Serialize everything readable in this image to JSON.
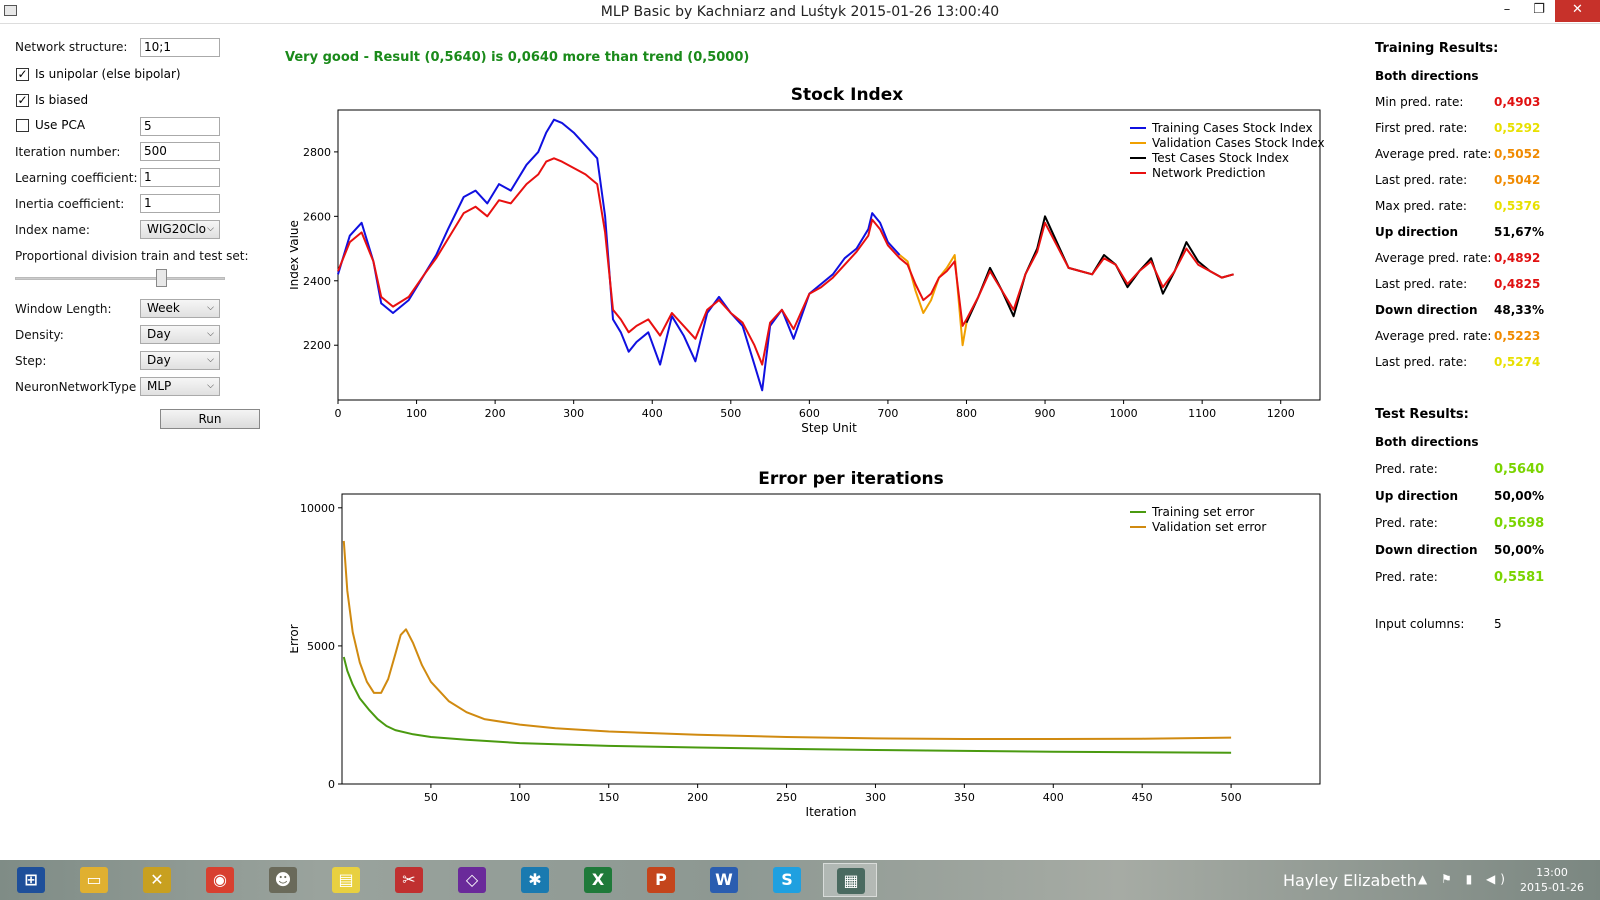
{
  "window": {
    "title": "MLP Basic by Kachniarz and Luśtyk 2015-01-26 13:00:40",
    "min": "–",
    "max": "❐",
    "close": "✕"
  },
  "form": {
    "network_structure_label": "Network structure:",
    "network_structure_value": "10;1",
    "unipolar_label": "Is unipolar (else bipolar)",
    "unipolar_checked": true,
    "biased_label": "Is biased",
    "biased_checked": true,
    "pca_label": "Use PCA",
    "pca_checked": false,
    "pca_value": "5",
    "iteration_label": "Iteration number:",
    "iteration_value": "500",
    "learning_label": "Learning coefficient:",
    "learning_value": "1",
    "inertia_label": "Inertia coefficient:",
    "inertia_value": "1",
    "index_label": "Index name:",
    "index_value": "WIG20Clo",
    "division_label": "Proportional division train and test set:",
    "division_fraction": 0.7,
    "window_label": "Window Length:",
    "window_value": "Week",
    "density_label": "Density:",
    "density_value": "Day",
    "step_label": "Step:",
    "step_value": "Day",
    "nntype_label": "NeuronNetworkType",
    "nntype_value": "MLP",
    "run_label": "Run"
  },
  "status_message": "Very good - Result (0,5640) is 0,0640 more than trend (0,5000)",
  "colors": {
    "training": "#1010e0",
    "validation": "#f0a000",
    "test": "#000000",
    "prediction": "#e81010",
    "train_err": "#4a9a10",
    "valid_err": "#d08a10",
    "status": "#1a8a1a"
  },
  "chart_data": [
    {
      "type": "line",
      "title": "Stock Index",
      "xlabel": "Step Unit",
      "ylabel": "Index Value",
      "xlim": [
        0,
        1250
      ],
      "ylim": [
        2030,
        2930
      ],
      "xticks": [
        0,
        100,
        200,
        300,
        400,
        500,
        600,
        700,
        800,
        900,
        1000,
        1100,
        1200
      ],
      "yticks": [
        2200,
        2400,
        2600,
        2800
      ],
      "legend_position": "top-right",
      "series": [
        {
          "name": "Training Cases Stock Index",
          "x": [
            0,
            15,
            30,
            45,
            55,
            70,
            90,
            110,
            125,
            140,
            160,
            175,
            190,
            205,
            220,
            240,
            255,
            265,
            275,
            285,
            300,
            315,
            330,
            340,
            350,
            360,
            370,
            380,
            395,
            410,
            425,
            440,
            455,
            470,
            485,
            500,
            515,
            530,
            540,
            550,
            565,
            580,
            600,
            615,
            630,
            645,
            660,
            675,
            680,
            690,
            700,
            715
          ],
          "y": [
            2420,
            2540,
            2580,
            2460,
            2330,
            2300,
            2340,
            2420,
            2480,
            2560,
            2660,
            2680,
            2640,
            2700,
            2680,
            2760,
            2800,
            2860,
            2900,
            2890,
            2860,
            2820,
            2780,
            2600,
            2280,
            2240,
            2180,
            2210,
            2240,
            2140,
            2290,
            2230,
            2150,
            2300,
            2350,
            2300,
            2260,
            2140,
            2060,
            2260,
            2310,
            2220,
            2360,
            2390,
            2420,
            2470,
            2500,
            2560,
            2610,
            2580,
            2520,
            2480
          ]
        },
        {
          "name": "Validation Cases Stock Index",
          "x": [
            715,
            725,
            735,
            745,
            755,
            765,
            775,
            785,
            795,
            800
          ],
          "y": [
            2480,
            2460,
            2370,
            2300,
            2340,
            2410,
            2440,
            2480,
            2200,
            2270
          ]
        },
        {
          "name": "Test Cases Stock Index",
          "x": [
            800,
            815,
            830,
            845,
            860,
            875,
            890,
            900,
            915,
            930,
            945,
            960,
            975,
            990,
            1005,
            1020,
            1035,
            1050,
            1065,
            1080,
            1095,
            1110,
            1125,
            1140
          ],
          "y": [
            2270,
            2350,
            2440,
            2370,
            2290,
            2420,
            2500,
            2600,
            2520,
            2440,
            2430,
            2420,
            2480,
            2450,
            2380,
            2430,
            2470,
            2360,
            2430,
            2520,
            2460,
            2430,
            2410,
            2420
          ]
        },
        {
          "name": "Network Prediction",
          "x": [
            0,
            15,
            30,
            45,
            55,
            70,
            90,
            110,
            125,
            140,
            160,
            175,
            190,
            205,
            220,
            240,
            255,
            265,
            275,
            285,
            300,
            315,
            330,
            340,
            350,
            360,
            370,
            380,
            395,
            410,
            425,
            440,
            455,
            470,
            485,
            500,
            515,
            530,
            540,
            550,
            565,
            580,
            600,
            615,
            630,
            645,
            660,
            675,
            680,
            690,
            700,
            715,
            725,
            735,
            745,
            755,
            765,
            775,
            785,
            795,
            800,
            815,
            830,
            845,
            860,
            875,
            890,
            900,
            915,
            930,
            945,
            960,
            975,
            990,
            1005,
            1020,
            1035,
            1050,
            1065,
            1080,
            1095,
            1110,
            1125,
            1140
          ],
          "y": [
            2430,
            2520,
            2550,
            2460,
            2350,
            2320,
            2350,
            2420,
            2470,
            2530,
            2610,
            2630,
            2600,
            2650,
            2640,
            2700,
            2730,
            2770,
            2780,
            2770,
            2750,
            2730,
            2700,
            2550,
            2310,
            2280,
            2240,
            2260,
            2280,
            2230,
            2300,
            2260,
            2220,
            2310,
            2340,
            2300,
            2270,
            2200,
            2140,
            2270,
            2310,
            2250,
            2360,
            2380,
            2410,
            2450,
            2490,
            2540,
            2590,
            2560,
            2510,
            2470,
            2450,
            2390,
            2340,
            2360,
            2410,
            2430,
            2460,
            2260,
            2280,
            2350,
            2430,
            2370,
            2310,
            2420,
            2490,
            2580,
            2510,
            2440,
            2430,
            2420,
            2470,
            2450,
            2390,
            2430,
            2460,
            2380,
            2430,
            2500,
            2450,
            2430,
            2410,
            2420
          ]
        }
      ]
    },
    {
      "type": "line",
      "title": "Error per iterations",
      "xlabel": "Iteration",
      "ylabel": "Error",
      "xlim": [
        0,
        550
      ],
      "ylim": [
        0,
        10500
      ],
      "xticks": [
        50,
        100,
        150,
        200,
        250,
        300,
        350,
        400,
        450,
        500
      ],
      "yticks": [
        0,
        5000,
        10000
      ],
      "legend_position": "top-right",
      "series": [
        {
          "name": "Training set error",
          "x": [
            1,
            3,
            6,
            10,
            15,
            20,
            25,
            30,
            40,
            50,
            70,
            100,
            150,
            200,
            250,
            300,
            350,
            400,
            450,
            500
          ],
          "y": [
            4600,
            4100,
            3600,
            3100,
            2700,
            2350,
            2100,
            1950,
            1800,
            1700,
            1600,
            1480,
            1380,
            1320,
            1270,
            1230,
            1200,
            1170,
            1150,
            1130
          ]
        },
        {
          "name": "Validation set error",
          "x": [
            1,
            3,
            6,
            10,
            14,
            18,
            22,
            26,
            30,
            33,
            36,
            40,
            45,
            50,
            60,
            70,
            80,
            100,
            120,
            150,
            200,
            250,
            300,
            350,
            400,
            450,
            500
          ],
          "y": [
            8800,
            7000,
            5500,
            4400,
            3700,
            3300,
            3300,
            3800,
            4700,
            5400,
            5600,
            5100,
            4300,
            3700,
            3000,
            2600,
            2350,
            2150,
            2020,
            1900,
            1780,
            1700,
            1650,
            1630,
            1630,
            1640,
            1680
          ]
        }
      ]
    }
  ],
  "results": {
    "training_title": "Training Results:",
    "both_directions": "Both directions",
    "min_label": "Min pred. rate:",
    "min_value": "0,4903",
    "first_label": "First pred. rate:",
    "first_value": "0,5292",
    "avg_label": "Average pred. rate:",
    "avg_value": "0,5052",
    "last_label": "Last pred. rate:",
    "last_value": "0,5042",
    "max_label": "Max pred. rate:",
    "max_value": "0,5376",
    "up_direction": "Up direction",
    "up_pct": "51,67%",
    "up_avg_label": "Average pred. rate:",
    "up_avg_value": "0,4892",
    "up_last_label": "Last pred. rate:",
    "up_last_value": "0,4825",
    "down_direction": "Down direction",
    "down_pct": "48,33%",
    "down_avg_label": "Average pred. rate:",
    "down_avg_value": "0,5223",
    "down_last_label": "Last pred. rate:",
    "down_last_value": "0,5274",
    "test_title": "Test Results:",
    "test_both": "Both directions",
    "test_pred_label": "Pred. rate:",
    "test_pred_value": "0,5640",
    "test_up": "Up direction",
    "test_up_pct": "50,00%",
    "test_up_pred_label": "Pred. rate:",
    "test_up_pred_value": "0,5698",
    "test_down": "Down direction",
    "test_down_pct": "50,00%",
    "test_down_pred_label": "Pred. rate:",
    "test_down_pred_value": "0,5581",
    "input_columns_label": "Input columns:",
    "input_columns_value": "5",
    "value_colors": {
      "red": "#e01010",
      "orange": "#f08a00",
      "yellow": "#e8e000",
      "green": "#7ad400"
    }
  },
  "taskbar": {
    "user": "Hayley Elizabeth",
    "time": "13:00",
    "date": "2015-01-26",
    "apps": [
      "start-icon",
      "file-explorer-icon",
      "xmind-icon",
      "chrome-icon",
      "gimp-icon",
      "sticky-notes-icon",
      "snipping-tool-icon",
      "visual-studio-icon",
      "resharper-icon",
      "excel-icon",
      "powerpoint-icon",
      "word-icon",
      "skype-icon",
      "mlp-app-icon"
    ],
    "tray": "▲ ⚑ ▮ ◀)"
  }
}
